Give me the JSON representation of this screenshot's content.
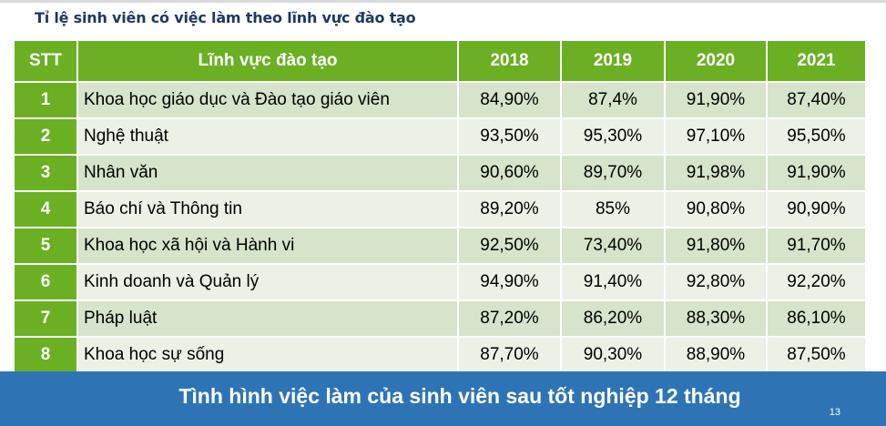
{
  "subtitle": "Tỉ lệ sinh viên có việc làm theo lĩnh vực đào tạo",
  "table": {
    "headers": [
      "STT",
      "Lĩnh vực đào tạo",
      "2018",
      "2019",
      "2020",
      "2021"
    ],
    "rows": [
      {
        "stt": "1",
        "field": "Khoa học giáo dục và Đào tạo giáo viên",
        "y2018": "84,90%",
        "y2019": "87,4%",
        "y2020": "91,90%",
        "y2021": "87,40%"
      },
      {
        "stt": "2",
        "field": "Nghệ thuật",
        "y2018": "93,50%",
        "y2019": "95,30%",
        "y2020": "97,10%",
        "y2021": "95,50%"
      },
      {
        "stt": "3",
        "field": "Nhân văn",
        "y2018": "90,60%",
        "y2019": "89,70%",
        "y2020": "91,98%",
        "y2021": "91,90%"
      },
      {
        "stt": "4",
        "field": "Báo chí và Thông tin",
        "y2018": "89,20%",
        "y2019": "85%",
        "y2020": "90,80%",
        "y2021": "90,90%"
      },
      {
        "stt": "5",
        "field": "Khoa học xã hội và Hành vi",
        "y2018": "92,50%",
        "y2019": "73,40%",
        "y2020": "91,80%",
        "y2021": "91,70%"
      },
      {
        "stt": "6",
        "field": "Kinh doanh và Quản lý",
        "y2018": "94,90%",
        "y2019": "91,40%",
        "y2020": "92,80%",
        "y2021": "92,20%"
      },
      {
        "stt": "7",
        "field": "Pháp luật",
        "y2018": "87,20%",
        "y2019": "86,20%",
        "y2020": "88,30%",
        "y2021": "86,10%"
      },
      {
        "stt": "8",
        "field": "Khoa học sự sống",
        "y2018": "87,70%",
        "y2019": "90,30%",
        "y2020": "88,90%",
        "y2021": "87,50%"
      }
    ]
  },
  "footer": {
    "title": "Tình hình việc làm của sinh viên sau tốt nghiệp 12 tháng",
    "page_number": "13"
  },
  "colors": {
    "header_green": "#6ab022",
    "row_dark": "#d5e4ca",
    "row_light": "#ebf1e5",
    "footer_blue": "#2e74b5",
    "subtitle_navy": "#1f3864"
  }
}
